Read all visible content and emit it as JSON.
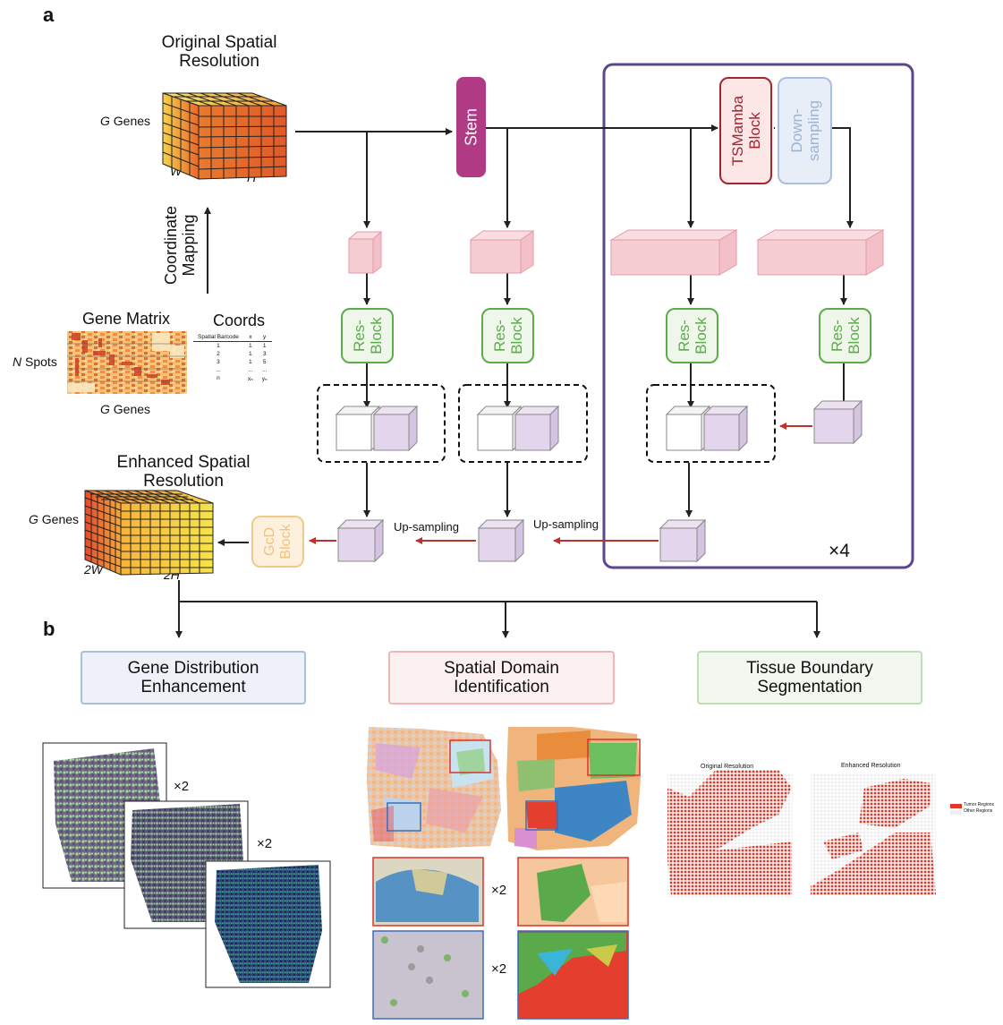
{
  "panels": {
    "a": "a",
    "b": "b"
  },
  "top": {
    "original_title": "Original Spatial Resolution",
    "original_title_l1": "Original Spatial",
    "original_title_l2": "Resolution",
    "genes_g": "G",
    "genes_word": "Genes",
    "w_label": "W",
    "h_label": "H",
    "coord_map_l1": "Coordinate",
    "coord_map_l2": "Mapping",
    "gene_matrix": "Gene Matrix",
    "coords": "Coords",
    "n_spots_n": "N",
    "n_spots_word": "Spots",
    "g_genes_g": "G",
    "g_genes_word": "Genes",
    "enhanced_title_l1": "Enhanced Spatial",
    "enhanced_title_l2": "Resolution",
    "w2_label": "2W",
    "h2_label": "2H"
  },
  "coords_table": {
    "headers": [
      "Spatial Barcode",
      "x",
      "y"
    ],
    "rows": [
      [
        "1",
        "1",
        "1"
      ],
      [
        "2",
        "1",
        "3"
      ],
      [
        "3",
        "1",
        "5"
      ],
      [
        "...",
        "...",
        "..."
      ],
      [
        "n",
        "xₙ",
        "yₙ"
      ]
    ]
  },
  "network": {
    "stem": "Stem",
    "tsmamba_l1": "TSMamba",
    "tsmamba_l2": "Block",
    "down_l1": "Down-",
    "down_l2": "sampling",
    "res_l1": "Res-",
    "res_l2": "Block",
    "gcd_l1": "GcD",
    "gcd_l2": "Block",
    "upsampling": "Up-sampling",
    "times4": "×4"
  },
  "tasks": {
    "gene_l1": "Gene Distribution",
    "gene_l2": "Enhancement",
    "spatial_l1": "Spatial Domain",
    "spatial_l2": "Identification",
    "tissue_l1": "Tissue Boundary",
    "tissue_l2": "Segmentation"
  },
  "results": {
    "x2": "×2",
    "original_resolution": "Original Resolution",
    "enhanced_resolution": "Enhanced Resolution",
    "legend_tumor": "Tumor Regions",
    "legend_other": "Other Regions"
  },
  "colors": {
    "stem": "#b03a83",
    "tsmamba_border": "#a3262f",
    "downsampling": "#a9bfe0",
    "resblock": "#5cab4c",
    "gcd": "#f2c987",
    "purple_frame": "#5a478c",
    "red_arrow": "#c0312b",
    "pink_cube": "#f7cdd4",
    "lilac_cube": "#e3d6ec",
    "tumor": "#e0392b"
  }
}
